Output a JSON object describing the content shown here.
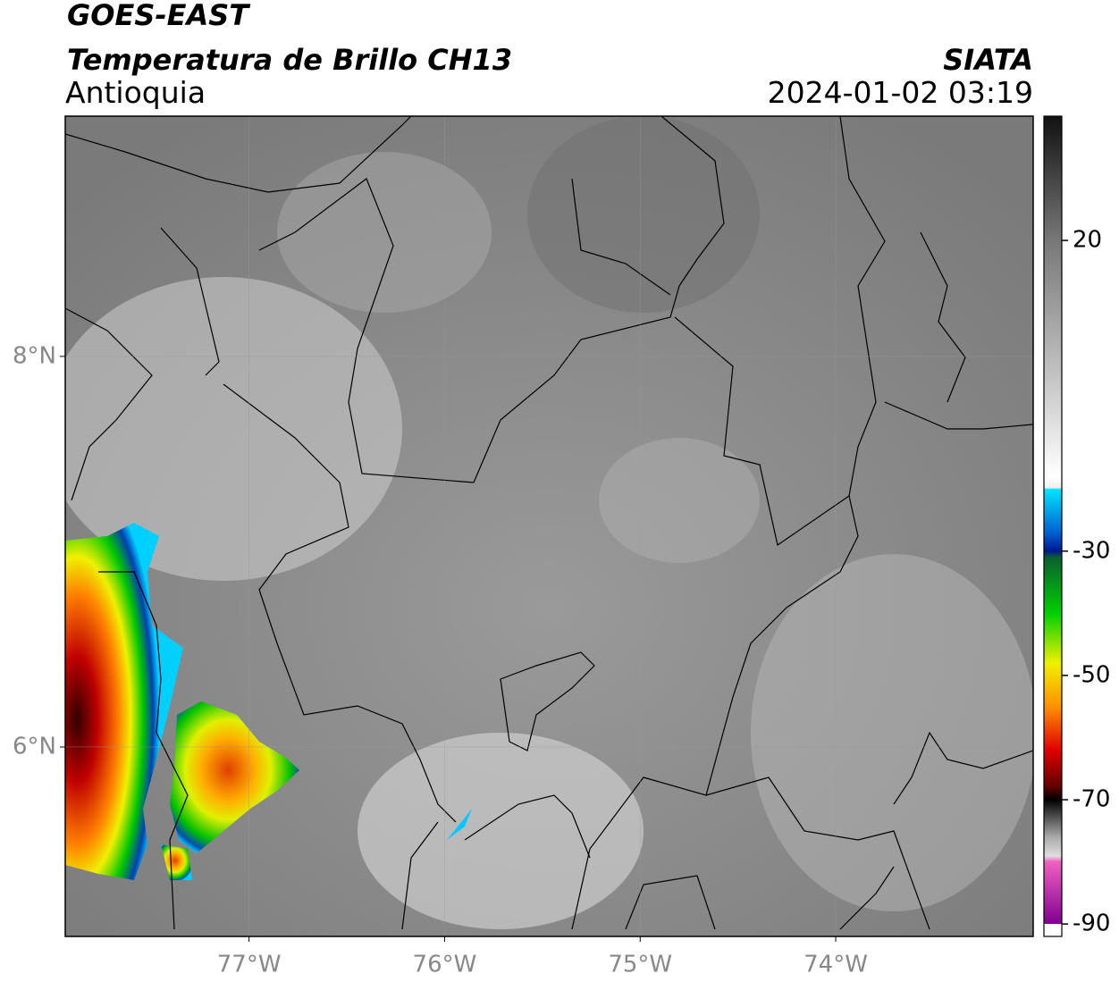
{
  "header": {
    "satellite": "GOES-EAST",
    "product": "Temperatura de Brillo CH13",
    "region": "Antioquia",
    "agency": "SIATA",
    "datetime": "2024-01-02 03:19"
  },
  "map": {
    "xlim": [
      -77.94,
      -72.99
    ],
    "ylim": [
      5.03,
      9.23
    ],
    "xticks": [
      {
        "value": -77,
        "label": "77°W"
      },
      {
        "value": -76,
        "label": "76°W"
      },
      {
        "value": -75,
        "label": "75°W"
      },
      {
        "value": -74,
        "label": "74°W"
      }
    ],
    "yticks": [
      {
        "value": 8,
        "label": "8°N"
      },
      {
        "value": 6,
        "label": "6°N"
      }
    ]
  },
  "colorbar": {
    "lim": [
      -92,
      40
    ],
    "ticks": [
      20,
      -30,
      -50,
      -70,
      -90
    ]
  }
}
